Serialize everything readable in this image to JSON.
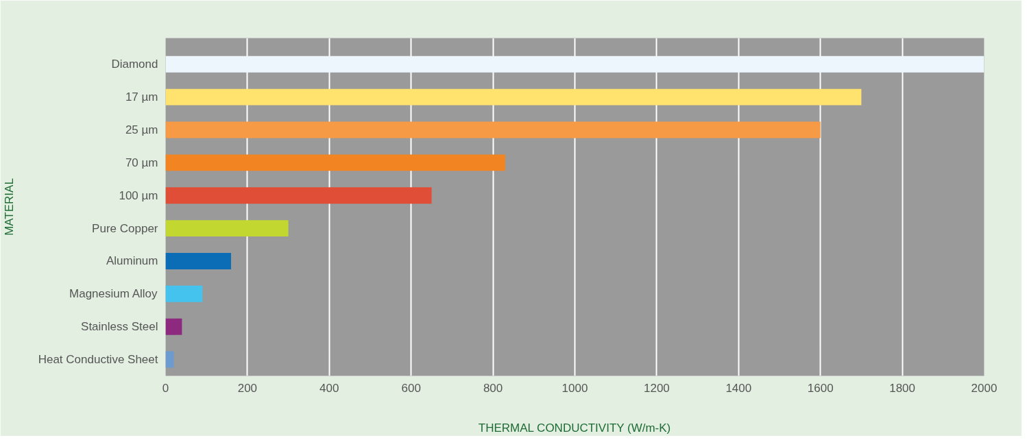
{
  "chart_data": {
    "type": "bar",
    "orientation": "horizontal",
    "xlabel": "THERMAL CONDUCTIVITY (W/m-K)",
    "ylabel": "MATERIAL",
    "categories": [
      "Diamond",
      "17 µm",
      "25 µm",
      "70 µm",
      "100 µm",
      "Pure Copper",
      "Aluminum",
      "Magnesium Alloy",
      "Stainless Steel",
      "Heat Conductive Sheet"
    ],
    "values": [
      2000,
      1700,
      1600,
      830,
      650,
      300,
      160,
      90,
      40,
      20
    ],
    "colors": [
      "#eef6fd",
      "#ffe36e",
      "#f79a45",
      "#f28422",
      "#e04e37",
      "#c3d731",
      "#0a6db6",
      "#45c3ef",
      "#8d2a7f",
      "#6b9bcf"
    ],
    "xlim": [
      0,
      2000
    ],
    "xticks": [
      0,
      200,
      400,
      600,
      800,
      1000,
      1200,
      1400,
      1600,
      1800,
      2000
    ],
    "grid": "x"
  }
}
